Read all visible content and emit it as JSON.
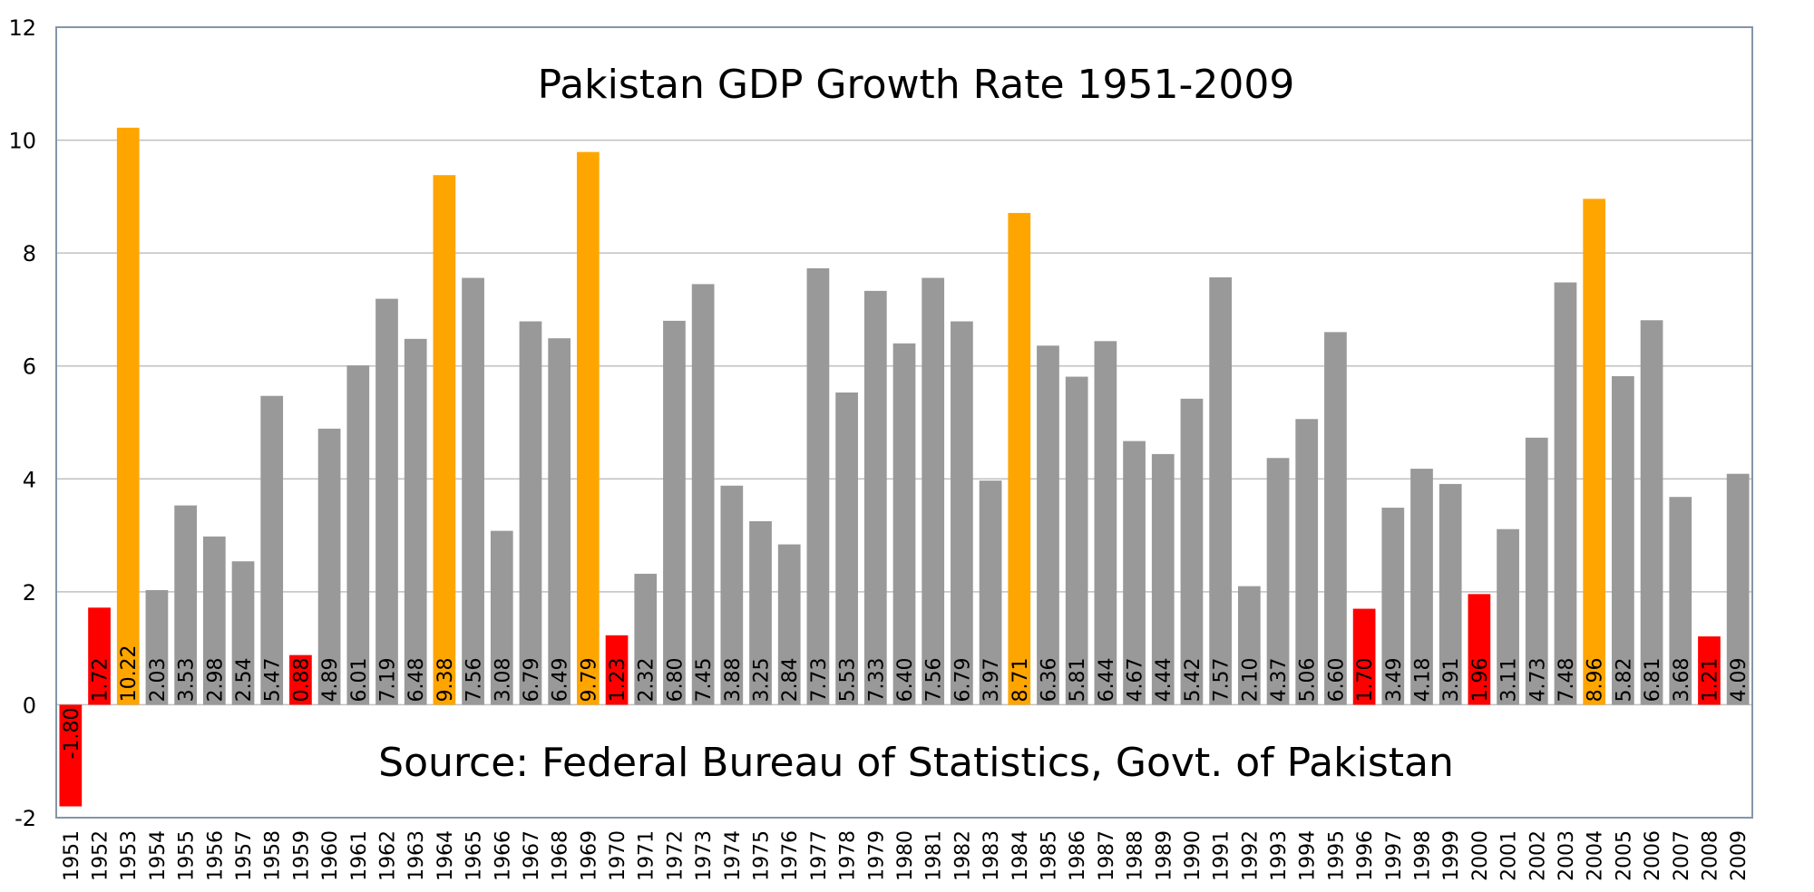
{
  "chart_data": {
    "type": "bar",
    "title": "Pakistan GDP Growth Rate 1951-2009",
    "annotation": "Source: Federal Bureau of Statistics, Govt. of Pakistan",
    "xlabel": "",
    "ylabel": "",
    "ylim": [
      -2,
      12
    ],
    "yticks": [
      "-2",
      "0",
      "2",
      "4",
      "6",
      "8",
      "10",
      "12"
    ],
    "grid": true,
    "categories": [
      "1951",
      "1952",
      "1953",
      "1954",
      "1955",
      "1956",
      "1957",
      "1958",
      "1959",
      "1960",
      "1961",
      "1962",
      "1963",
      "1964",
      "1965",
      "1966",
      "1967",
      "1968",
      "1969",
      "1970",
      "1971",
      "1972",
      "1973",
      "1974",
      "1975",
      "1976",
      "1977",
      "1978",
      "1979",
      "1980",
      "1981",
      "1982",
      "1983",
      "1984",
      "1985",
      "1986",
      "1987",
      "1988",
      "1989",
      "1990",
      "1991",
      "1992",
      "1993",
      "1994",
      "1995",
      "1996",
      "1997",
      "1998",
      "1999",
      "2000",
      "2001",
      "2002",
      "2003",
      "2004",
      "2005",
      "2006",
      "2007",
      "2008",
      "2009"
    ],
    "values": [
      -1.8,
      1.72,
      10.22,
      2.03,
      3.53,
      2.98,
      2.54,
      5.47,
      0.88,
      4.89,
      6.01,
      7.19,
      6.48,
      9.38,
      7.56,
      3.08,
      6.79,
      6.49,
      9.79,
      1.23,
      2.32,
      6.8,
      7.45,
      3.88,
      3.25,
      2.84,
      7.73,
      5.53,
      7.33,
      6.4,
      7.56,
      6.79,
      3.97,
      8.71,
      6.36,
      5.81,
      6.44,
      4.67,
      4.44,
      5.42,
      7.57,
      2.1,
      4.37,
      5.06,
      6.6,
      1.7,
      3.49,
      4.18,
      3.91,
      1.96,
      3.11,
      4.73,
      7.48,
      8.96,
      5.82,
      6.81,
      3.68,
      1.21,
      4.09
    ],
    "value_labels": [
      "-1.80",
      "1.72",
      "10.22",
      "2.03",
      "3.53",
      "2.98",
      "2.54",
      "5.47",
      "0.88",
      "4.89",
      "6.01",
      "7.19",
      "6.48",
      "9.38",
      "7.56",
      "3.08",
      "6.79",
      "6.49",
      "9.79",
      "1.23",
      "2.32",
      "6.80",
      "7.45",
      "3.88",
      "3.25",
      "2.84",
      "7.73",
      "5.53",
      "7.33",
      "6.40",
      "7.56",
      "6.79",
      "3.97",
      "8.71",
      "6.36",
      "5.81",
      "6.44",
      "4.67",
      "4.44",
      "5.42",
      "7.57",
      "2.10",
      "4.37",
      "5.06",
      "6.60",
      "1.70",
      "3.49",
      "4.18",
      "3.91",
      "1.96",
      "3.11",
      "4.73",
      "7.48",
      "8.96",
      "5.82",
      "6.81",
      "3.68",
      "1.21",
      "4.09"
    ],
    "colors": {
      "low": "#ff0000",
      "high": "#ffa500",
      "normal": "#999999",
      "grid": "#c0c0c0",
      "frame": "#8496a8"
    },
    "color_rule": {
      "low_below": 2,
      "high_at_or_above": 8.5
    }
  }
}
